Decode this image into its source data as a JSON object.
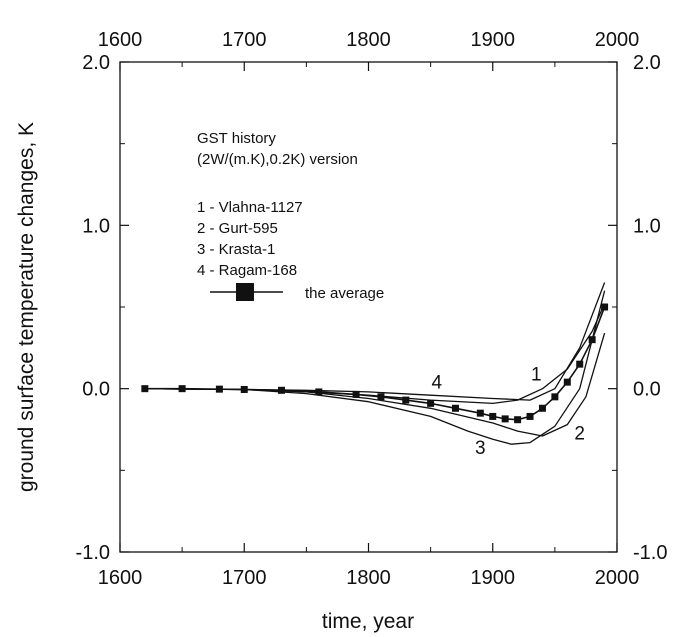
{
  "chart_data": {
    "type": "line",
    "title": "",
    "xlabel": "time, year",
    "ylabel": "ground surface temperature changes, K",
    "xlim": [
      1600,
      2000
    ],
    "ylim": [
      -1.0,
      2.0
    ],
    "x_ticks": [
      "1600",
      "1700",
      "1800",
      "1900",
      "2000"
    ],
    "y_ticks_left": [
      "2.0",
      "1.0",
      "0.0",
      "-1.0"
    ],
    "y_ticks_right": [
      "2.0",
      "1.0",
      "0.0",
      "-1.0"
    ],
    "grid": false,
    "legend": {
      "placement": "top-left",
      "title_lines": [
        "GST history",
        "(2W/(m.K),0.2K) version"
      ],
      "entries": [
        "1 - Vlahna-1127",
        "2 - Gurt-595",
        "3 - Krasta-1",
        "4 - Ragam-168"
      ],
      "average_label": "the average"
    },
    "series": [
      {
        "name": "1",
        "x": [
          1620,
          1700,
          1750,
          1800,
          1850,
          1900,
          1920,
          1940,
          1960,
          1980,
          1990
        ],
        "y": [
          0.0,
          -0.005,
          -0.02,
          -0.04,
          -0.07,
          -0.09,
          -0.07,
          0.0,
          0.12,
          0.35,
          0.52
        ]
      },
      {
        "name": "2",
        "x": [
          1620,
          1700,
          1750,
          1800,
          1850,
          1900,
          1920,
          1940,
          1960,
          1975,
          1990
        ],
        "y": [
          0.0,
          -0.005,
          -0.02,
          -0.06,
          -0.12,
          -0.21,
          -0.26,
          -0.29,
          -0.22,
          -0.05,
          0.34
        ]
      },
      {
        "name": "3",
        "x": [
          1620,
          1700,
          1750,
          1800,
          1850,
          1880,
          1900,
          1915,
          1930,
          1950,
          1970,
          1990
        ],
        "y": [
          0.0,
          -0.005,
          -0.03,
          -0.08,
          -0.17,
          -0.26,
          -0.31,
          -0.34,
          -0.33,
          -0.23,
          0.0,
          0.6
        ]
      },
      {
        "name": "4",
        "x": [
          1620,
          1700,
          1750,
          1800,
          1850,
          1900,
          1930,
          1950,
          1970,
          1990
        ],
        "y": [
          0.0,
          -0.005,
          -0.01,
          -0.02,
          -0.04,
          -0.06,
          -0.07,
          0.0,
          0.25,
          0.65
        ]
      },
      {
        "name": "the average",
        "x": [
          1620,
          1650,
          1680,
          1700,
          1730,
          1760,
          1790,
          1810,
          1830,
          1850,
          1870,
          1890,
          1900,
          1910,
          1920,
          1930,
          1940,
          1950,
          1960,
          1970,
          1980,
          1990
        ],
        "y": [
          0.0,
          0.0,
          -0.003,
          -0.005,
          -0.01,
          -0.02,
          -0.035,
          -0.05,
          -0.07,
          -0.09,
          -0.12,
          -0.15,
          -0.17,
          -0.185,
          -0.19,
          -0.17,
          -0.12,
          -0.05,
          0.04,
          0.15,
          0.3,
          0.5
        ]
      }
    ],
    "curve_labels": [
      {
        "text": "1",
        "x": 1935,
        "y": 0.05
      },
      {
        "text": "2",
        "x": 1970,
        "y": -0.31
      },
      {
        "text": "3",
        "x": 1890,
        "y": -0.4
      },
      {
        "text": "4",
        "x": 1855,
        "y": 0.0
      }
    ]
  }
}
